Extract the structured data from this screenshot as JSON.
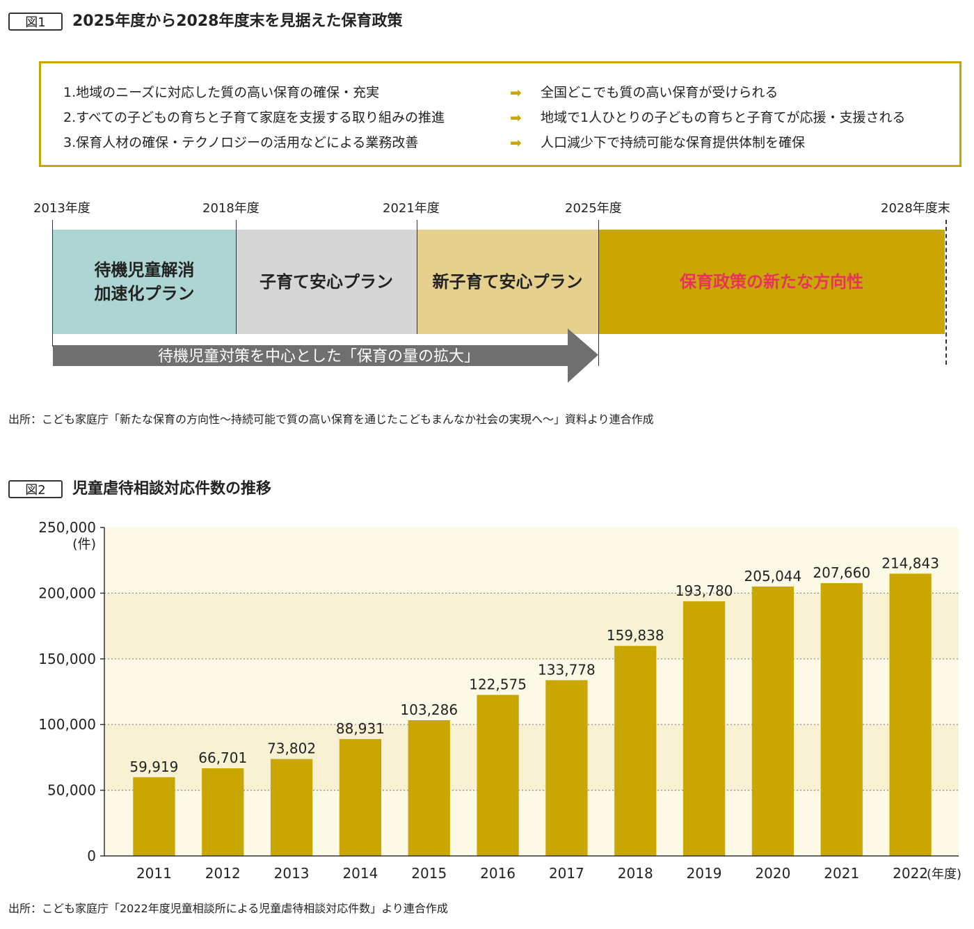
{
  "figure1": {
    "label": "図1",
    "title": "2025年度から2028年度末を見据えた保育政策",
    "policies": [
      {
        "goal": "1.地域のニーズに対応した質の高い保育の確保・充実",
        "result": "全国どこでも質の高い保育が受けられる"
      },
      {
        "goal": "2.すべての子どもの育ちと子育て家庭を支援する取り組みの推進",
        "result": "地域で1人ひとりの子どもの育ちと子育てが応援・支援される"
      },
      {
        "goal": "3.保育人材の確保・テクノロジーの活用などによる業務改善",
        "result": "人口減少下で持続可能な保育提供体制を確保"
      }
    ],
    "arrow_icon": "right-arrow-icon",
    "timeline": {
      "years": [
        "2013年度",
        "2018年度",
        "2021年度",
        "2025年度",
        "2028年度末"
      ],
      "plans": [
        {
          "line1": "待機児童解消",
          "line2": "加速化プラン",
          "color": "#acd5d4"
        },
        {
          "line1": "子育て安心プラン",
          "line2": "",
          "color": "#d6d6d6"
        },
        {
          "line1": "新子育て安心プラン",
          "line2": "",
          "color": "#e6d08e"
        },
        {
          "line1": "保育政策の新たな方向性",
          "line2": "",
          "color": "#c9a700",
          "text_color": "#e8335d"
        }
      ],
      "arrow_text": "待機児童対策を中心とした「保育の量の拡大」",
      "arrow_color": "#6f6f6f"
    },
    "source": "出所：こども家庭庁「新たな保育の方向性〜持続可能で質の高い保育を通じたこどもまんなか社会の実現へ〜」資料より連合作成"
  },
  "figure2": {
    "label": "図2",
    "title": "児童虐待相談対応件数の推移",
    "source": "出所：こども家庭庁「2022年度児童相談所による児童虐待相談対応件数」より連合作成"
  },
  "chart_data": {
    "type": "bar",
    "title": "児童虐待相談対応件数の推移",
    "categories": [
      "2011",
      "2012",
      "2013",
      "2014",
      "2015",
      "2016",
      "2017",
      "2018",
      "2019",
      "2020",
      "2021",
      "2022"
    ],
    "values": [
      59919,
      66701,
      73802,
      88931,
      103286,
      122575,
      133778,
      159838,
      193780,
      205044,
      207660,
      214843
    ],
    "value_labels": [
      "59,919",
      "66,701",
      "73,802",
      "88,931",
      "103,286",
      "122,575",
      "133,778",
      "159,838",
      "193,780",
      "205,044",
      "207,660",
      "214,843"
    ],
    "yticks": [
      0,
      50000,
      100000,
      150000,
      200000,
      250000
    ],
    "ytick_labels": [
      "0",
      "50,000",
      "100,000",
      "150,000",
      "200,000",
      "250,000"
    ],
    "ylim": [
      0,
      250000
    ],
    "ylabel": "(件)",
    "xlabel": "(年度)",
    "bar_color": "#c9a700",
    "plot_bg": [
      "#fdf9e7",
      "#f8f1d3"
    ],
    "grid": "dotted horizontal"
  }
}
